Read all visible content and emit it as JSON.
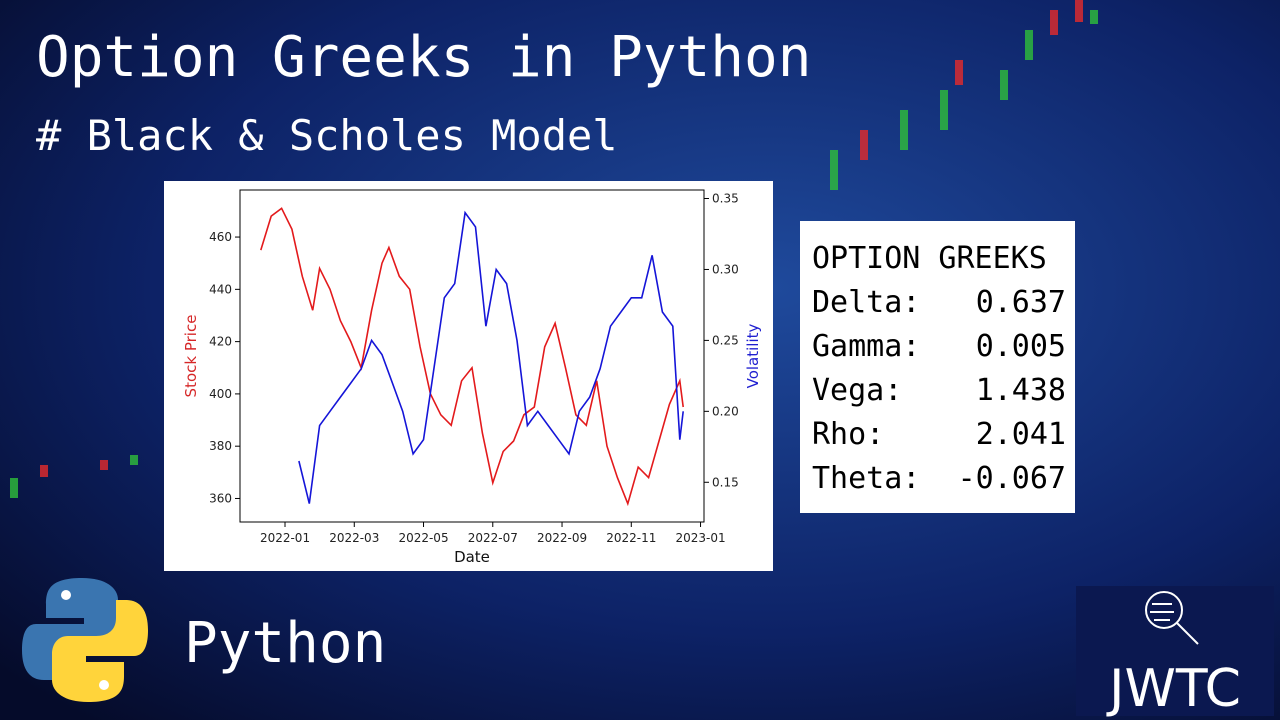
{
  "header": {
    "title": "Option Greeks in Python",
    "subtitle": "# Black & Scholes Model"
  },
  "chart_data": {
    "type": "line",
    "xlabel": "Date",
    "ylabel": "Stock Price",
    "y2label": "Volatility",
    "xlim": [
      -1.3,
      12.1
    ],
    "xticks": [
      {
        "value": 0,
        "label": "2022-01"
      },
      {
        "value": 2,
        "label": "2022-03"
      },
      {
        "value": 4,
        "label": "2022-05"
      },
      {
        "value": 6,
        "label": "2022-07"
      },
      {
        "value": 8,
        "label": "2022-09"
      },
      {
        "value": 10,
        "label": "2022-11"
      },
      {
        "value": 12,
        "label": "2023-01"
      }
    ],
    "ylim": [
      351,
      478
    ],
    "yticks": [
      360,
      380,
      400,
      420,
      440,
      460
    ],
    "y2lim": [
      0.122,
      0.356
    ],
    "y2ticks": [
      0.15,
      {
        "value": 0.2,
        "label": "0.20"
      },
      0.25,
      {
        "value": 0.3,
        "label": "0.30"
      },
      0.35
    ],
    "ylabel_color": "#d62728",
    "y2label_color": "#1f1fd0",
    "series": [
      {
        "color": "#e31a1c",
        "axis": "y",
        "x": [
          -0.7,
          -0.4,
          -0.1,
          0.2,
          0.5,
          0.8,
          1.0,
          1.3,
          1.6,
          1.9,
          2.2,
          2.5,
          2.8,
          3.0,
          3.3,
          3.6,
          3.9,
          4.2,
          4.5,
          4.8,
          5.1,
          5.4,
          5.7,
          6.0,
          6.3,
          6.6,
          6.9,
          7.2,
          7.5,
          7.8,
          8.1,
          8.4,
          8.7,
          9.0,
          9.3,
          9.6,
          9.9,
          10.2,
          10.5,
          10.8,
          11.1,
          11.4,
          11.5
        ],
        "values": [
          455,
          468,
          471,
          463,
          445,
          432,
          448,
          440,
          428,
          420,
          410,
          432,
          450,
          456,
          445,
          440,
          418,
          400,
          392,
          388,
          405,
          410,
          385,
          366,
          378,
          382,
          392,
          395,
          418,
          427,
          410,
          392,
          388,
          405,
          380,
          368,
          358,
          372,
          368,
          382,
          396,
          405,
          395
        ]
      },
      {
        "color": "#1515d8",
        "axis": "y2",
        "x": [
          0.4,
          0.7,
          1.0,
          1.3,
          1.6,
          1.9,
          2.2,
          2.5,
          2.8,
          3.1,
          3.4,
          3.7,
          4.0,
          4.3,
          4.6,
          4.9,
          5.2,
          5.5,
          5.8,
          6.1,
          6.4,
          6.7,
          7.0,
          7.3,
          7.6,
          7.9,
          8.2,
          8.5,
          8.8,
          9.1,
          9.4,
          9.7,
          10.0,
          10.3,
          10.6,
          10.9,
          11.2,
          11.4,
          11.5
        ],
        "values": [
          0.165,
          0.135,
          0.19,
          0.2,
          0.21,
          0.22,
          0.23,
          0.25,
          0.24,
          0.22,
          0.2,
          0.17,
          0.18,
          0.23,
          0.28,
          0.29,
          0.34,
          0.33,
          0.26,
          0.3,
          0.29,
          0.25,
          0.19,
          0.2,
          0.19,
          0.18,
          0.17,
          0.2,
          0.21,
          0.23,
          0.26,
          0.27,
          0.28,
          0.28,
          0.31,
          0.27,
          0.26,
          0.18,
          0.2
        ]
      }
    ]
  },
  "greeks": {
    "title": "OPTION GREEKS",
    "rows": [
      [
        "Delta:",
        0.637
      ],
      [
        "Gamma:",
        0.005
      ],
      [
        "Vega:",
        1.438
      ],
      [
        "Rho:",
        2.041
      ],
      [
        "Theta:",
        -0.067
      ]
    ]
  },
  "footer": {
    "language": "Python",
    "brand": "JWTC"
  }
}
